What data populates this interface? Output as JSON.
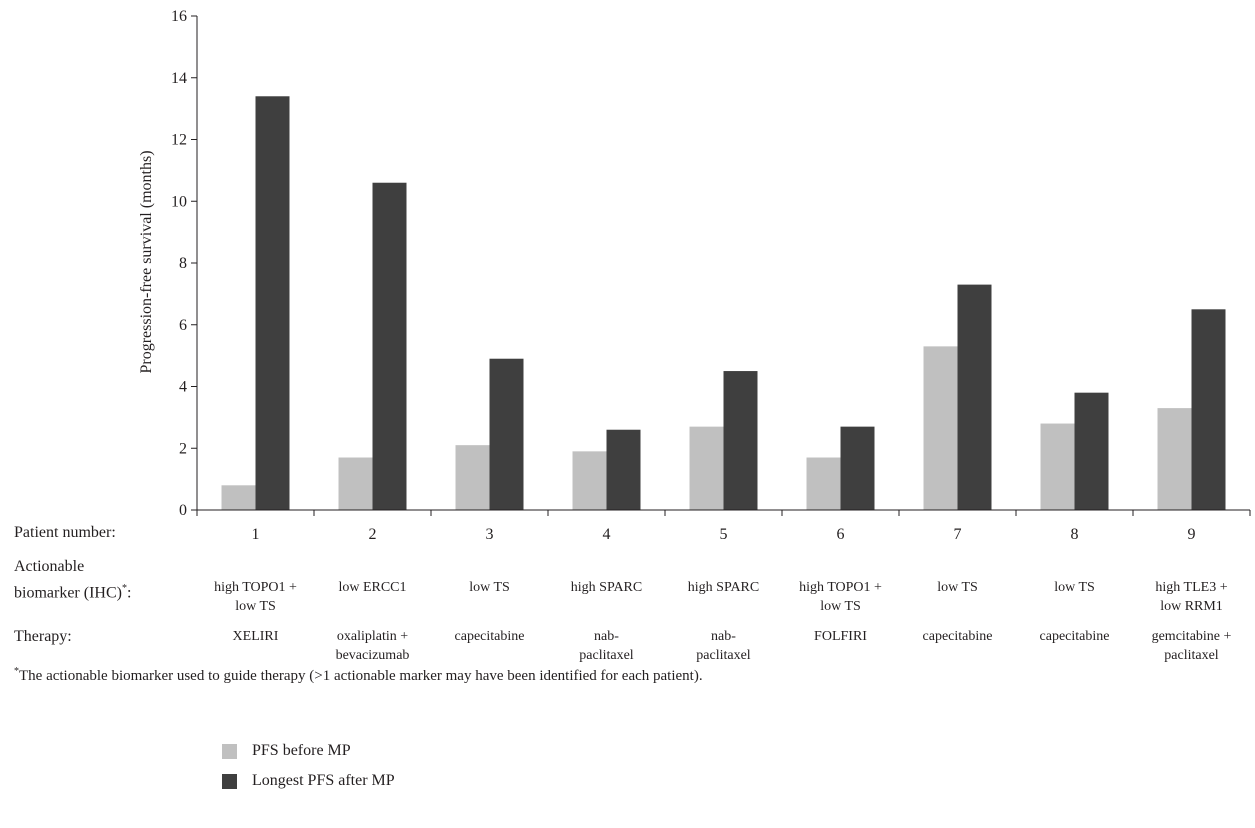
{
  "chart_data": {
    "type": "bar",
    "ylabel": "Progression-free survival (months)",
    "ylim": [
      0,
      16
    ],
    "yticks": [
      0,
      2,
      4,
      6,
      8,
      10,
      12,
      14,
      16
    ],
    "categories": [
      "1",
      "2",
      "3",
      "4",
      "5",
      "6",
      "7",
      "8",
      "9"
    ],
    "series": [
      {
        "name": "PFS before MP",
        "color": "#c0c0c0",
        "values": [
          0.8,
          1.7,
          2.1,
          1.9,
          2.7,
          1.7,
          5.3,
          2.8,
          3.3
        ]
      },
      {
        "name": "Longest PFS after MP",
        "color": "#3f3f3f",
        "values": [
          13.4,
          10.6,
          4.9,
          2.6,
          4.5,
          2.7,
          7.3,
          3.8,
          6.5
        ]
      }
    ],
    "legend_position": "bottom-left",
    "grid": false
  },
  "table": {
    "patient_label": "Patient number:",
    "biomarker_label_line1": "Actionable",
    "biomarker_label_line2": "biomarker (IHC)",
    "biomarker_label_sup": "*",
    "biomarker_label_suffix": ":",
    "therapy_label": "Therapy:",
    "biomarkers": [
      [
        "high TOPO1 +",
        "low TS"
      ],
      [
        "low ERCC1",
        ""
      ],
      [
        "low TS",
        ""
      ],
      [
        "high SPARC",
        ""
      ],
      [
        "high SPARC",
        ""
      ],
      [
        "high TOPO1 +",
        "low TS"
      ],
      [
        "low TS",
        ""
      ],
      [
        "low TS",
        ""
      ],
      [
        "high TLE3 +",
        "low RRM1"
      ]
    ],
    "therapies": [
      [
        "XELIRI",
        ""
      ],
      [
        "oxaliplatin +",
        "bevacizumab"
      ],
      [
        "capecitabine",
        ""
      ],
      [
        "nab-",
        "paclitaxel"
      ],
      [
        "nab-",
        "paclitaxel"
      ],
      [
        "FOLFIRI",
        ""
      ],
      [
        "capecitabine",
        ""
      ],
      [
        "capecitabine",
        ""
      ],
      [
        "gemcitabine +",
        "paclitaxel"
      ]
    ]
  },
  "footnote": {
    "mark": "*",
    "text": "The actionable biomarker used to guide therapy (>1 actionable marker may have been identified for each patient)."
  }
}
